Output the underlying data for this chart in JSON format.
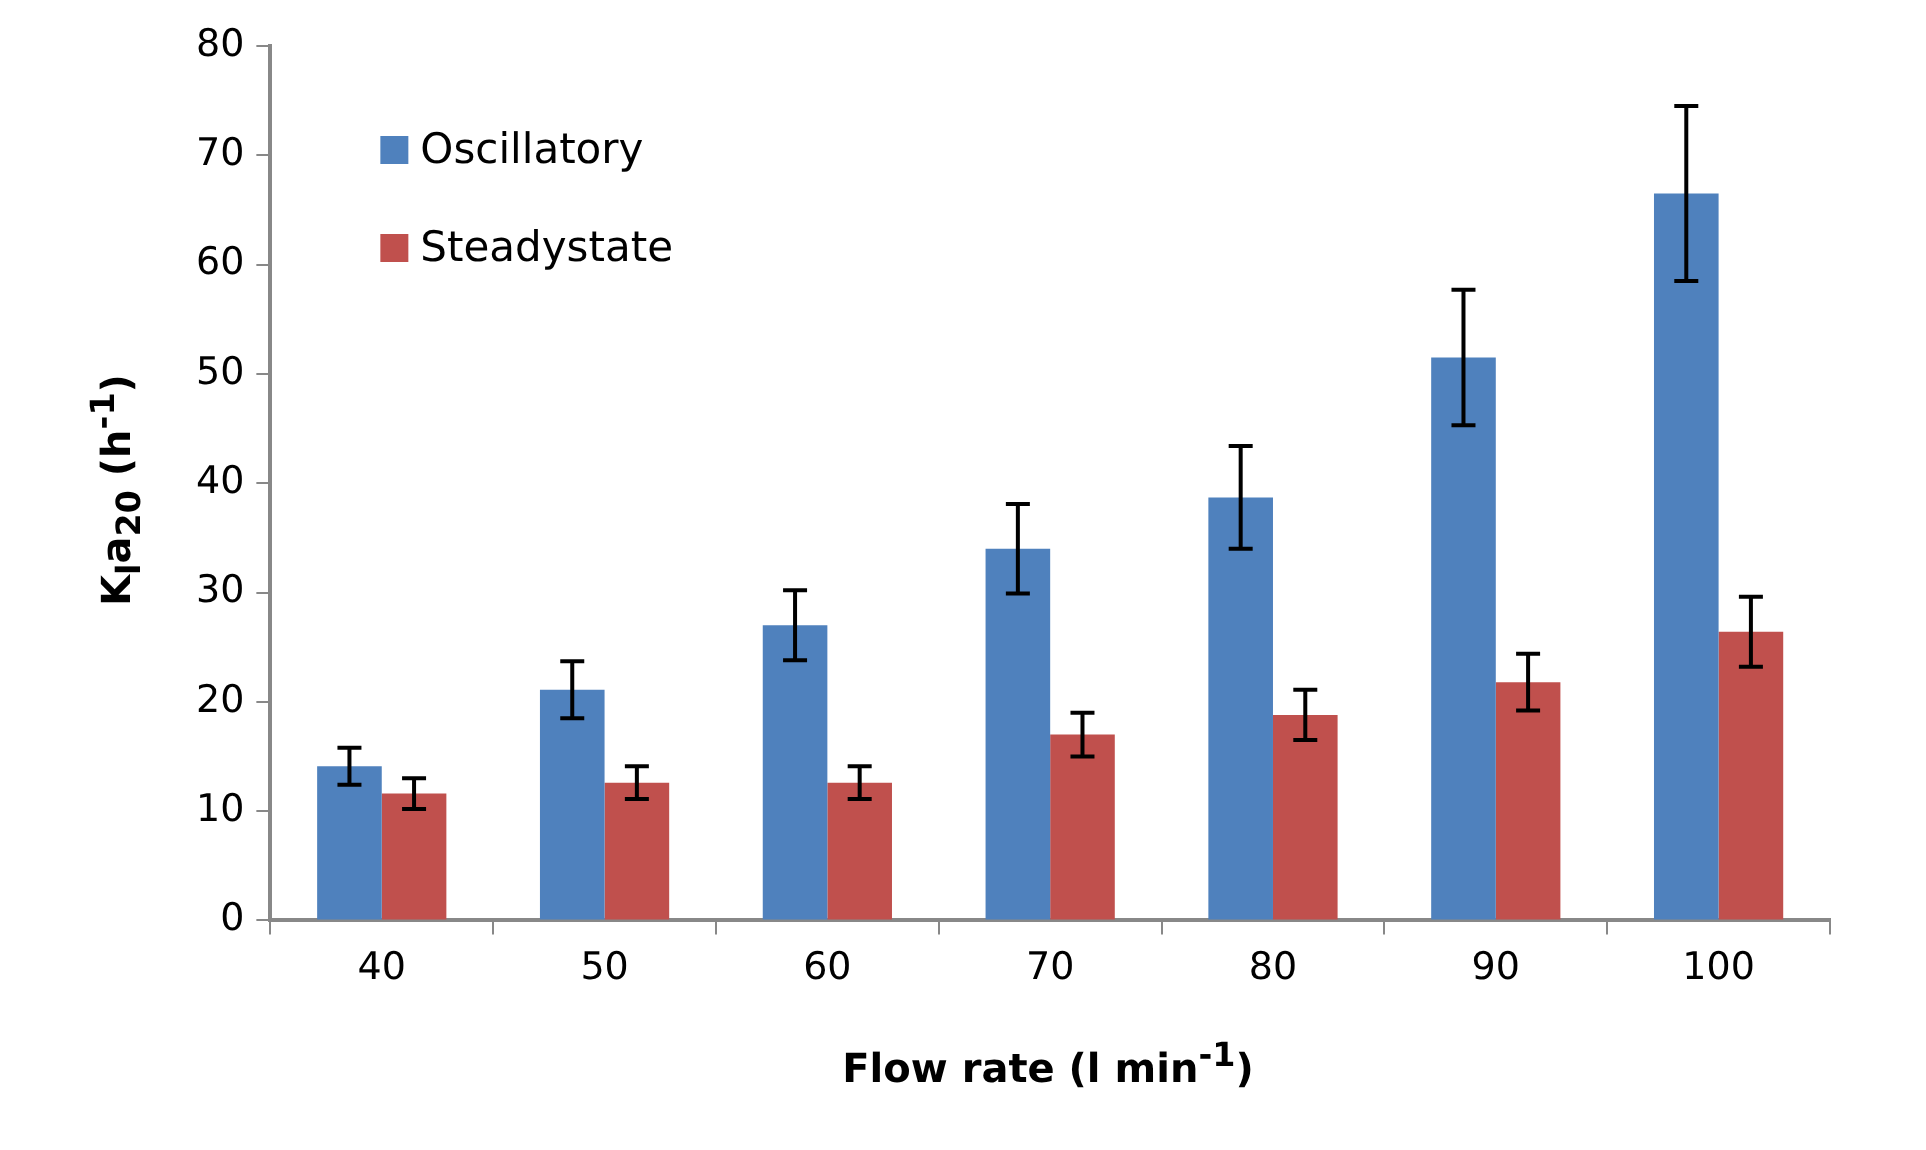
{
  "chart_data": {
    "type": "bar",
    "xlabel": "Flow rate (l min$^{-1}$)",
    "ylabel": "K$_{l}$a$_{20}$ (h$^{-1}$)",
    "categories": [
      "40",
      "50",
      "60",
      "70",
      "80",
      "90",
      "100"
    ],
    "series": [
      {
        "name": "Oscillatory",
        "color": "#4f81bd",
        "values": [
          14.1,
          21.1,
          27.0,
          34.0,
          38.7,
          51.5,
          66.5
        ],
        "errors": [
          1.7,
          2.6,
          3.2,
          4.1,
          4.7,
          6.2,
          8.0
        ]
      },
      {
        "name": "Steadystate",
        "color": "#c0504d",
        "values": [
          11.6,
          12.6,
          12.6,
          17.0,
          18.8,
          21.8,
          26.4
        ],
        "errors": [
          1.4,
          1.5,
          1.5,
          2.0,
          2.3,
          2.6,
          3.2
        ]
      }
    ],
    "ylim": [
      0,
      80
    ],
    "yticks": [
      0,
      10,
      20,
      30,
      40,
      50,
      60,
      70,
      80
    ],
    "grid": false,
    "legend": "top left"
  }
}
